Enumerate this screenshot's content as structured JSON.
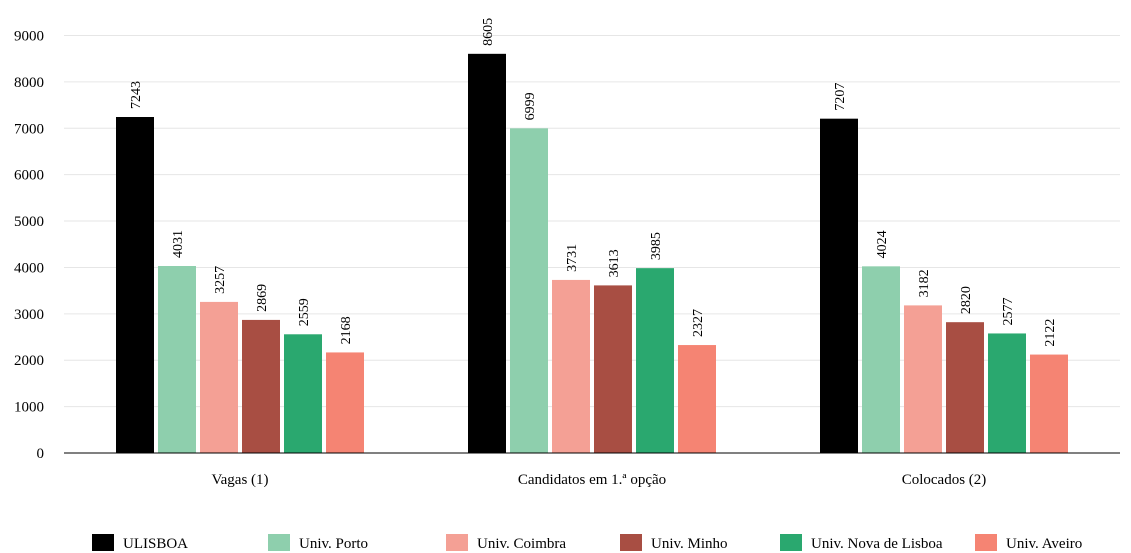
{
  "chart_data": {
    "type": "bar",
    "title": "",
    "xlabel": "",
    "ylabel": "",
    "ylim": [
      0,
      9000
    ],
    "yticks": [
      0,
      1000,
      2000,
      3000,
      4000,
      5000,
      6000,
      7000,
      8000,
      9000
    ],
    "grid": true,
    "legend_position": "bottom",
    "categories": [
      "Vagas (1)",
      "Candidatos em 1.ª opção",
      "Colocados (2)"
    ],
    "series": [
      {
        "name": "ULISBOA",
        "color": "#000000",
        "values": [
          7243,
          8605,
          7207
        ]
      },
      {
        "name": "Univ. Porto",
        "color": "#8ecfad",
        "values": [
          4031,
          6999,
          4024
        ]
      },
      {
        "name": "Univ. Coimbra",
        "color": "#f4a095",
        "values": [
          3257,
          3731,
          3182
        ]
      },
      {
        "name": "Univ. Minho",
        "color": "#a84e43",
        "values": [
          2869,
          3613,
          2820
        ]
      },
      {
        "name": "Univ. Nova de Lisboa",
        "color": "#2aa86f",
        "values": [
          2559,
          3985,
          2577
        ]
      },
      {
        "name": "Univ. Aveiro",
        "color": "#f58473",
        "values": [
          2168,
          2327,
          2122
        ]
      }
    ]
  }
}
